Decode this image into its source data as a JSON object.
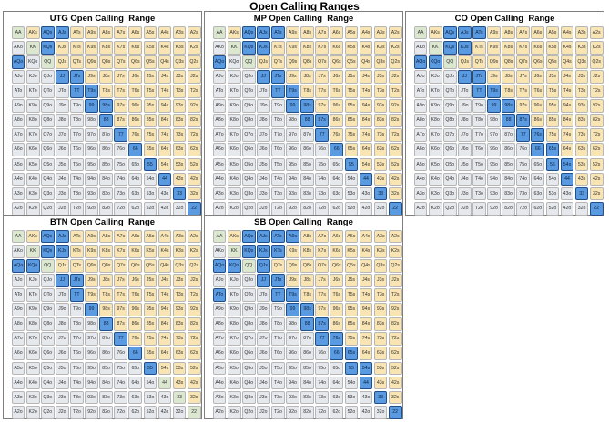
{
  "title": "Open Calling Ranges",
  "hands": [
    [
      "AA",
      "AKs",
      "AQs",
      "AJs",
      "ATs",
      "A9s",
      "A8s",
      "A7s",
      "A6s",
      "A5s",
      "A4s",
      "A3s",
      "A2s"
    ],
    [
      "AKo",
      "KK",
      "KQs",
      "KJs",
      "KTs",
      "K9s",
      "K8s",
      "K7s",
      "K6s",
      "K5s",
      "K4s",
      "K3s",
      "K2s"
    ],
    [
      "AQo",
      "KQo",
      "QQ",
      "QJs",
      "QTs",
      "Q9s",
      "Q8s",
      "Q7s",
      "Q6s",
      "Q5s",
      "Q4s",
      "Q3s",
      "Q2s"
    ],
    [
      "AJo",
      "KJo",
      "QJo",
      "JJ",
      "JTs",
      "J9s",
      "J8s",
      "J7s",
      "J6s",
      "J5s",
      "J4s",
      "J3s",
      "J2s"
    ],
    [
      "ATo",
      "KTo",
      "QTo",
      "JTo",
      "TT",
      "T9s",
      "T8s",
      "T7s",
      "T6s",
      "T5s",
      "T4s",
      "T3s",
      "T2s"
    ],
    [
      "A9o",
      "K9o",
      "Q9o",
      "J9o",
      "T9o",
      "99",
      "98s",
      "97s",
      "96s",
      "95s",
      "94s",
      "93s",
      "92s"
    ],
    [
      "A8o",
      "K8o",
      "Q8o",
      "J8o",
      "T8o",
      "98o",
      "88",
      "87s",
      "86s",
      "85s",
      "84s",
      "83s",
      "82s"
    ],
    [
      "A7o",
      "K7o",
      "Q7o",
      "J7o",
      "T7o",
      "97o",
      "87o",
      "77",
      "76s",
      "75s",
      "74s",
      "73s",
      "72s"
    ],
    [
      "A6o",
      "K6o",
      "Q6o",
      "J6o",
      "T6o",
      "96o",
      "86o",
      "76o",
      "66",
      "65s",
      "64s",
      "63s",
      "62s"
    ],
    [
      "A5o",
      "K5o",
      "Q5o",
      "J5o",
      "T5o",
      "95o",
      "85o",
      "75o",
      "65o",
      "55",
      "54s",
      "53s",
      "52s"
    ],
    [
      "A4o",
      "K4o",
      "Q4o",
      "J4o",
      "T4o",
      "94o",
      "84o",
      "74o",
      "64o",
      "54o",
      "44",
      "43s",
      "42s"
    ],
    [
      "A3o",
      "K3o",
      "Q3o",
      "J3o",
      "T3o",
      "93o",
      "83o",
      "73o",
      "63o",
      "53o",
      "43o",
      "33",
      "32s"
    ],
    [
      "A2o",
      "K2o",
      "Q2o",
      "J2o",
      "T2o",
      "92o",
      "82o",
      "72o",
      "62o",
      "52o",
      "42o",
      "32o",
      "22"
    ]
  ],
  "colors": {
    "pair": "#dce7d0",
    "suited": "#f9e4b3",
    "offsuit": "#e5e8ec",
    "call": "#5a9ae0"
  },
  "panels": [
    {
      "title": "UTG Open Calling  Range",
      "calls": [
        "AQs",
        "AJs",
        "KQs",
        "AQo",
        "JJ",
        "JTs",
        "TT",
        "T9s",
        "99",
        "98s",
        "88",
        "77",
        "66",
        "55",
        "44",
        "33",
        "22"
      ]
    },
    {
      "title": "MP Open Calling  Range",
      "calls": [
        "AQs",
        "AJs",
        "ATs",
        "KQs",
        "KJs",
        "AQo",
        "JJ",
        "JTs",
        "TT",
        "T9s",
        "99",
        "98s",
        "88",
        "87s",
        "77",
        "66",
        "55",
        "44",
        "33",
        "22"
      ]
    },
    {
      "title": "CO Open Calling  Range",
      "calls": [
        "AQs",
        "AJs",
        "ATs",
        "KQs",
        "KJs",
        "AQo",
        "KQo",
        "JJ",
        "JTs",
        "TT",
        "T9s",
        "99",
        "98s",
        "88",
        "87s",
        "77",
        "76s",
        "66",
        "65s",
        "55",
        "54s",
        "44",
        "33",
        "22"
      ]
    },
    {
      "title": "BTN Open Calling  Range",
      "calls": [
        "AQs",
        "AJs",
        "KQs",
        "KJs",
        "AQo",
        "KQo",
        "JJ",
        "JTs",
        "TT",
        "99",
        "88",
        "77",
        "66",
        "55"
      ]
    },
    {
      "title": "SB Open Calling  Range",
      "calls": [
        "AQs",
        "AJs",
        "ATs",
        "A9s",
        "KQs",
        "KJs",
        "KTs",
        "QJs",
        "AQo",
        "KQo",
        "JJ",
        "JTs",
        "ATo",
        "TT",
        "T9s",
        "99",
        "98s",
        "88",
        "87s",
        "77",
        "76s",
        "66",
        "65s",
        "55",
        "54s",
        "44",
        "33",
        "22"
      ]
    }
  ]
}
